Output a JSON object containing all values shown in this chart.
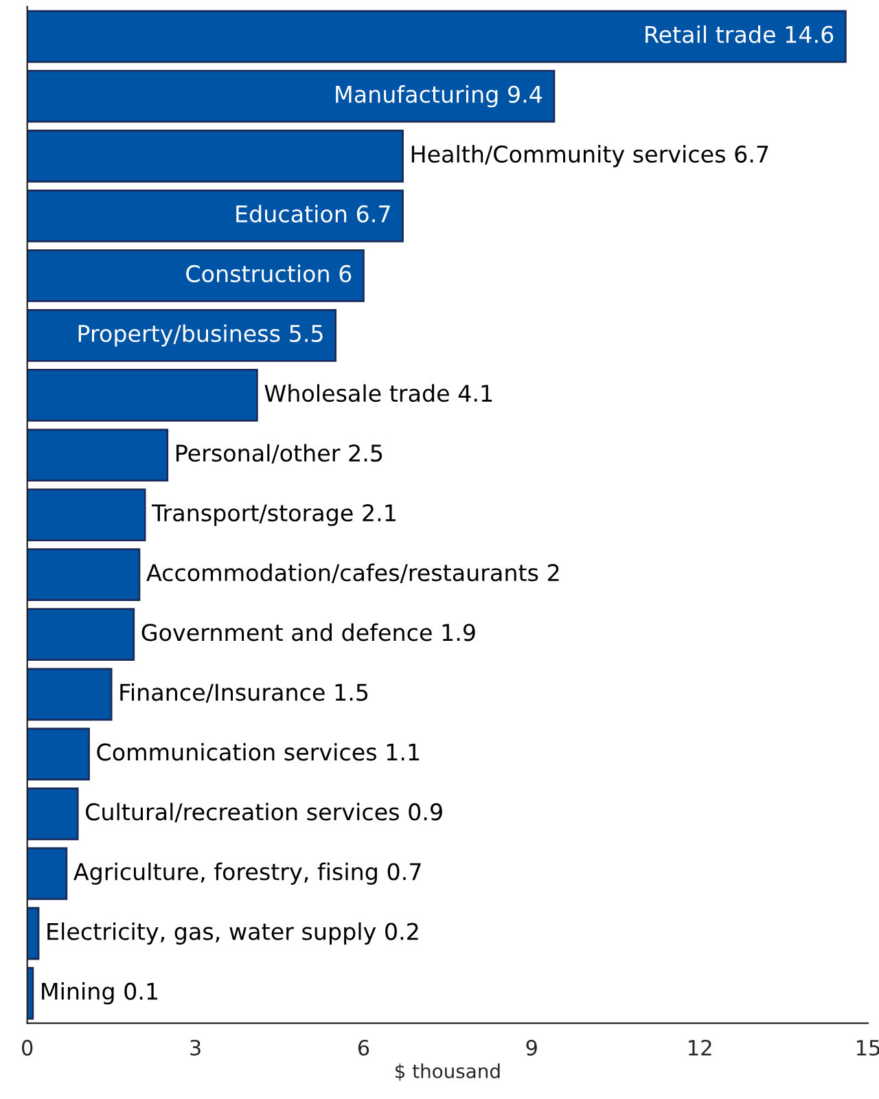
{
  "chart_data": {
    "type": "bar",
    "orientation": "horizontal",
    "xlabel": "$ thousand",
    "categories": [
      "Retail trade 14.6",
      "Manufacturing 9.4",
      "Health/Community services 6.7",
      "Education 6.7",
      "Construction 6",
      "Property/business 5.5",
      "Wholesale trade 4.1",
      "Personal/other 2.5",
      "Transport/storage 2.1",
      "Accommodation/cafes/restaurants 2",
      "Government and defence 1.9",
      "Finance/Insurance 1.5",
      "Communication services 1.1",
      "Cultural/recreation services 0.9",
      "Agriculture, forestry, fising 0.7",
      "Electricity, gas, water supply 0.2",
      "Mining 0.1"
    ],
    "values": [
      14.6,
      9.4,
      6.7,
      6.7,
      6,
      5.5,
      4.1,
      2.5,
      2.1,
      2,
      1.9,
      1.5,
      1.1,
      0.9,
      0.7,
      0.2,
      0.1
    ],
    "color": "#0054a6",
    "xlim": [
      0,
      15
    ],
    "xticks": [
      0,
      3,
      6,
      9,
      12,
      15
    ],
    "tick_labels": "x"
  }
}
